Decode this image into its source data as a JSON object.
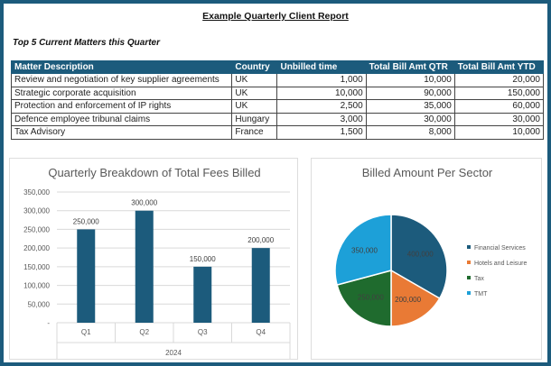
{
  "report": {
    "title": "Example Quarterly Client Report",
    "subtitle": "Top 5 Current Matters this Quarter"
  },
  "table": {
    "headers": [
      "Matter Description",
      "Country",
      "Unbilled time",
      "Total Bill Amt QTR",
      "Total Bill Amt YTD"
    ],
    "rows": [
      [
        "Review and negotiation of key supplier agreements",
        "UK",
        "1,000",
        "10,000",
        "20,000"
      ],
      [
        "Strategic corporate acquisition",
        "UK",
        "10,000",
        "90,000",
        "150,000"
      ],
      [
        "Protection and enforcement of IP rights",
        "UK",
        "2,500",
        "35,000",
        "60,000"
      ],
      [
        "Defence employee tribunal claims",
        "Hungary",
        "3,000",
        "30,000",
        "30,000"
      ],
      [
        "Tax Advisory",
        "France",
        "1,500",
        "8,000",
        "10,000"
      ]
    ]
  },
  "chart_data": [
    {
      "type": "bar",
      "title": "Quarterly Breakdown of Total Fees Billed",
      "categories": [
        "Q1",
        "Q2",
        "Q3",
        "Q4"
      ],
      "group_label": "2024",
      "values": [
        250000,
        300000,
        150000,
        200000
      ],
      "data_labels": [
        "250,000",
        "300,000",
        "150,000",
        "200,000"
      ],
      "ylim": [
        0,
        350000
      ],
      "yticks": [
        "-",
        "50,000",
        "100,000",
        "150,000",
        "200,000",
        "250,000",
        "300,000",
        "350,000"
      ],
      "grid": true,
      "color": "#1c5b7c"
    },
    {
      "type": "pie",
      "title": "Billed Amount Per Sector",
      "labels": [
        "Financial Services",
        "Hotels and Leisure",
        "Tax",
        "TMT"
      ],
      "values": [
        400000,
        200000,
        250000,
        350000
      ],
      "data_labels": [
        "400,000",
        "200,000",
        "250,000",
        "350,000"
      ],
      "colors": [
        "#1c5b7c",
        "#e97a35",
        "#1f6b2e",
        "#1da0d8"
      ],
      "legend": "right"
    }
  ]
}
